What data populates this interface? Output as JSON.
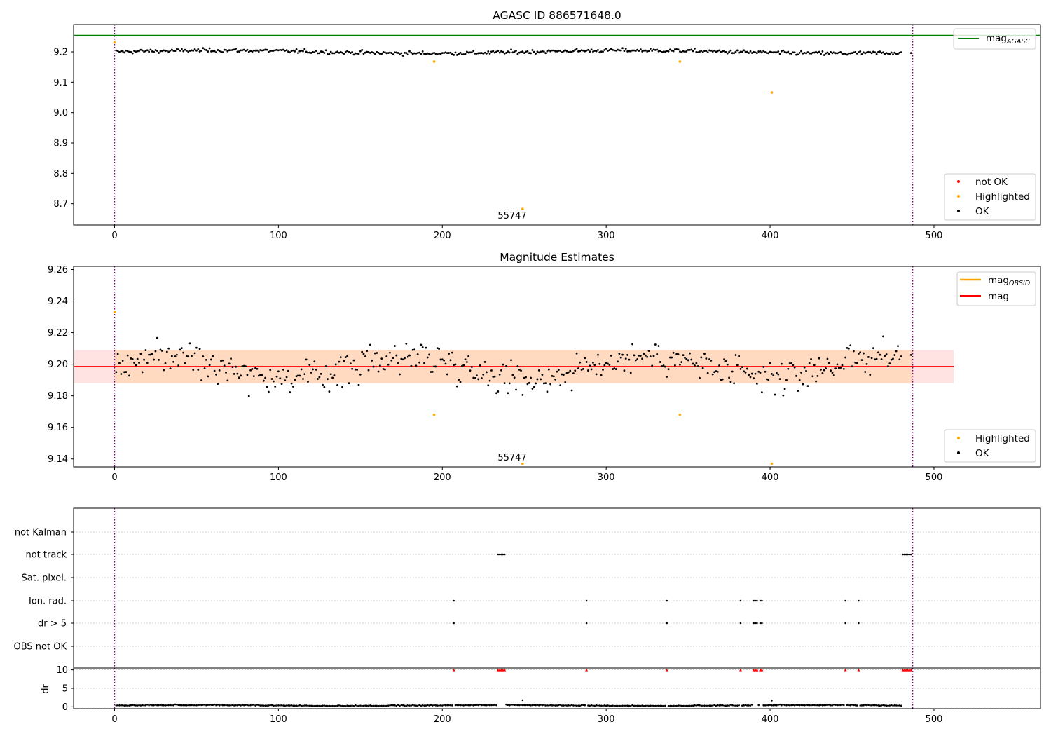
{
  "chart_data": [
    {
      "type": "scatter",
      "title": "AGASC ID 886571648.0",
      "xlim": [
        -25,
        565
      ],
      "ylim": [
        8.63,
        9.29
      ],
      "xticks": [
        0,
        100,
        200,
        300,
        400,
        500
      ],
      "yticks": [
        8.7,
        8.8,
        8.9,
        9.0,
        9.1,
        9.2
      ],
      "ytick_labels": [
        "8.7",
        "8.8",
        "8.9",
        "9.0",
        "9.1",
        "9.2"
      ],
      "hline": {
        "name": "mag_AGASC",
        "value": 9.254,
        "color": "#008000"
      },
      "vlines": [
        0,
        487
      ],
      "ok_series": {
        "name": "OK",
        "color": "#000000",
        "n": 487,
        "center": 9.2,
        "amplitude": 0.008,
        "noise": 0.007,
        "gaps": [
          [
            487,
            487
          ]
        ]
      },
      "highlighted": {
        "name": "Highlighted",
        "color": "#ffa500",
        "points": [
          [
            0,
            9.231
          ],
          [
            195,
            9.168
          ],
          [
            345,
            9.168
          ],
          [
            401,
            9.066
          ],
          [
            249,
            8.683
          ]
        ]
      },
      "annotation": {
        "text": "55747",
        "x": 249,
        "y": 8.66
      },
      "legend_top": {
        "entries": [
          {
            "label": "mag",
            "sub": "AGASC"
          }
        ],
        "position": "upper right"
      },
      "legend_bottom": {
        "entries": [
          {
            "label": "not OK",
            "color": "#ff0000"
          },
          {
            "label": "Highlighted",
            "color": "#ffa500"
          },
          {
            "label": "OK",
            "color": "#000000"
          }
        ],
        "position": "lower right"
      }
    },
    {
      "type": "scatter",
      "title": "Magnitude Estimates",
      "xlim": [
        -25,
        565
      ],
      "ylim": [
        9.135,
        9.262
      ],
      "xticks": [
        0,
        100,
        200,
        300,
        400,
        500
      ],
      "yticks": [
        9.14,
        9.16,
        9.18,
        9.2,
        9.22,
        9.24,
        9.26
      ],
      "ytick_labels": [
        "9.14",
        "9.16",
        "9.18",
        "9.20",
        "9.22",
        "9.24",
        "9.26"
      ],
      "mag_line": {
        "name": "mag",
        "value": 9.1985,
        "color": "#ff0000",
        "band": [
          9.188,
          9.209
        ],
        "x_range": [
          -25,
          512
        ]
      },
      "vlines": [
        0,
        487
      ],
      "ok_series": {
        "name": "OK",
        "color": "#000000",
        "n": 487,
        "center": 9.198,
        "amplitude": 0.007,
        "noise": 0.01
      },
      "highlighted": {
        "name": "Highlighted",
        "color": "#ffa500",
        "points": [
          [
            0,
            9.233
          ],
          [
            195,
            9.168
          ],
          [
            345,
            9.168
          ],
          [
            249,
            9.137
          ],
          [
            401,
            9.137
          ]
        ]
      },
      "annotation": {
        "text": "55747",
        "x": 249,
        "y": 9.14
      },
      "legend_top": {
        "entries": [
          {
            "label": "mag",
            "sub": "OBSID",
            "color": "#ffa500"
          },
          {
            "label": "mag",
            "color": "#ff0000"
          }
        ],
        "position": "upper right"
      },
      "legend_bottom": {
        "entries": [
          {
            "label": "Highlighted",
            "color": "#ffa500"
          },
          {
            "label": "OK",
            "color": "#000000"
          }
        ],
        "position": "lower right"
      }
    },
    {
      "type": "scatter",
      "title": "",
      "xlim": [
        -25,
        565
      ],
      "xticks": [
        0,
        100,
        200,
        300,
        400,
        500
      ],
      "flag_labels": [
        "not Kalman",
        "not track",
        "Sat. pixel.",
        "Ion. rad.",
        "dr > 5",
        "OBS not OK"
      ],
      "flags": {
        "not Kalman": [],
        "not track": [
          234,
          235,
          236,
          237,
          238,
          481,
          482,
          483,
          484,
          485,
          486
        ],
        "Sat. pixel.": [],
        "Ion. rad.": [
          207,
          288,
          337,
          382,
          390,
          391,
          392,
          394,
          395,
          446,
          454
        ],
        "dr > 5": [
          207,
          288,
          337,
          382,
          390,
          391,
          392,
          394,
          395,
          446,
          454
        ],
        "OBS not OK": []
      },
      "dr": {
        "ylabel": "dr",
        "yticks": [
          0,
          5,
          10
        ],
        "ylim": [
          -0.5,
          10.5
        ],
        "flagged_x": [
          207,
          234,
          235,
          236,
          237,
          238,
          288,
          337,
          382,
          390,
          391,
          392,
          394,
          395,
          446,
          454,
          481,
          482,
          483,
          484,
          485,
          486
        ],
        "flagged_value": 10,
        "flagged_color": "#ff0000",
        "spikes": [
          [
            249,
            1.8
          ],
          [
            401,
            1.7
          ]
        ],
        "baseline": 0.3
      },
      "vlines": [
        0,
        487
      ]
    }
  ]
}
